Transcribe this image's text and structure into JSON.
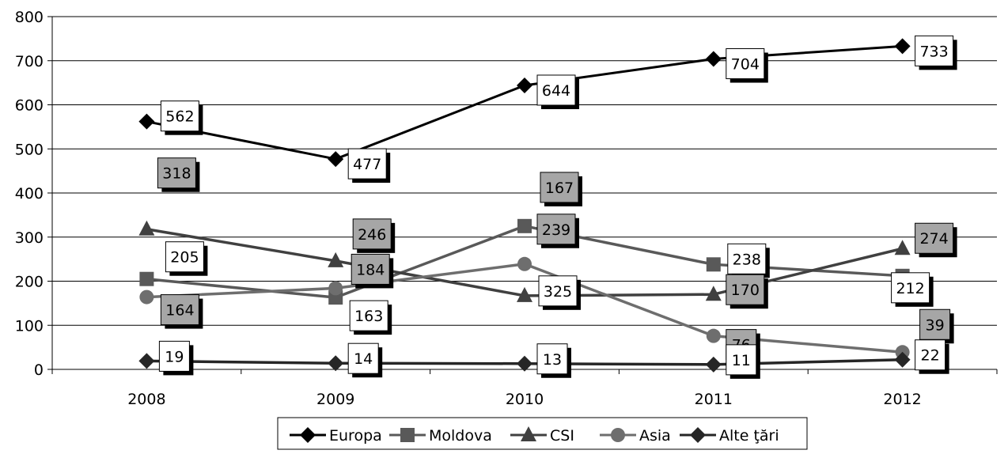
{
  "chart_data": {
    "type": "line",
    "categories": [
      "2008",
      "2009",
      "2010",
      "2011",
      "2012"
    ],
    "ylim": [
      0,
      800
    ],
    "yticks": [
      "0",
      "100",
      "200",
      "300",
      "400",
      "500",
      "600",
      "700",
      "800"
    ],
    "grid": true,
    "legend_position": "bottom",
    "series": [
      {
        "name": "Europa",
        "values": [
          562,
          477,
          644,
          704,
          733
        ],
        "labels": [
          "562",
          "477",
          "644",
          "704",
          "733"
        ],
        "color": "#000000",
        "marker": "diamond",
        "label_style": "white"
      },
      {
        "name": "Moldova",
        "values": [
          205,
          163,
          325,
          238,
          212
        ],
        "labels": [
          "205",
          "163",
          "325",
          "238",
          "212"
        ],
        "color": "#595959",
        "marker": "square",
        "label_style": "white"
      },
      {
        "name": "CSI",
        "values": [
          318,
          246,
          167,
          170,
          274
        ],
        "labels": [
          "318",
          "246",
          "167",
          "170",
          "274"
        ],
        "color": "#404040",
        "marker": "triangle",
        "label_style": "gray"
      },
      {
        "name": "Asia",
        "values": [
          164,
          184,
          239,
          76,
          39
        ],
        "labels": [
          "164",
          "184",
          "239",
          "76",
          "39"
        ],
        "color": "#6e6e6e",
        "marker": "circle",
        "label_style": "gray"
      },
      {
        "name": "Alte ţări",
        "values": [
          19,
          14,
          13,
          11,
          22
        ],
        "labels": [
          "19",
          "14",
          "13",
          "11",
          "22"
        ],
        "color": "#262626",
        "marker": "diamond",
        "label_style": "white"
      }
    ]
  }
}
